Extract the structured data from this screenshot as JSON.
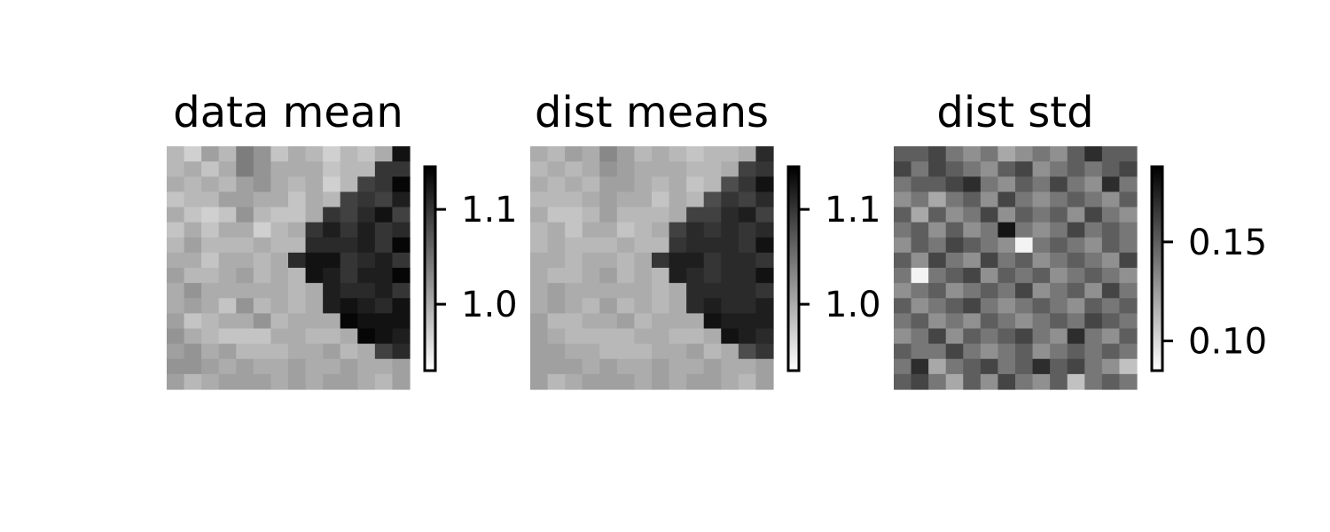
{
  "chart_data": [
    {
      "type": "heatmap",
      "title": "data mean",
      "colormap": "gray_r",
      "colorbar_range": [
        0.93,
        1.145
      ],
      "colorbar_ticks": [
        1.0,
        1.1
      ],
      "colorbar_tick_labels": [
        "1.0",
        "1.1"
      ],
      "values": [
        [
          0.99,
          0.97,
          1.01,
          0.99,
          1.04,
          1.02,
          0.98,
          1.0,
          0.99,
          0.97,
          0.99,
          0.98,
          1.0,
          1.13
        ],
        [
          0.99,
          1.0,
          0.98,
          1.0,
          1.04,
          1.02,
          1.0,
          1.0,
          1.0,
          0.98,
          0.99,
          0.99,
          1.1,
          1.1
        ],
        [
          1.0,
          0.99,
          1.0,
          0.99,
          1.01,
          1.02,
          1.0,
          0.99,
          1.0,
          0.97,
          0.99,
          1.09,
          1.1,
          1.14
        ],
        [
          0.98,
          0.99,
          0.99,
          1.01,
          1.01,
          1.0,
          1.0,
          0.98,
          1.0,
          0.99,
          1.09,
          1.1,
          1.09,
          1.12
        ],
        [
          1.0,
          0.98,
          0.97,
          0.98,
          1.02,
          0.99,
          0.98,
          0.98,
          1.0,
          1.1,
          1.09,
          1.11,
          1.13,
          1.09
        ],
        [
          0.98,
          1.0,
          0.98,
          1.0,
          1.0,
          0.97,
          0.99,
          1.0,
          1.1,
          1.12,
          1.1,
          1.12,
          1.1,
          1.11
        ],
        [
          0.99,
          1.01,
          0.99,
          0.99,
          0.99,
          1.0,
          0.99,
          0.99,
          1.11,
          1.11,
          1.11,
          1.12,
          1.1,
          1.14
        ],
        [
          1.0,
          1.0,
          0.98,
          1.0,
          1.0,
          0.99,
          1.0,
          1.11,
          1.13,
          1.13,
          1.1,
          1.11,
          1.12,
          1.1
        ],
        [
          1.01,
          0.99,
          0.99,
          1.0,
          1.01,
          0.99,
          1.0,
          0.99,
          1.13,
          1.12,
          1.1,
          1.12,
          1.12,
          1.14
        ],
        [
          1.0,
          1.02,
          1.0,
          1.0,
          1.0,
          1.0,
          1.0,
          0.99,
          1.0,
          1.12,
          1.11,
          1.11,
          1.12,
          1.1
        ],
        [
          1.0,
          1.01,
          1.0,
          0.98,
          1.02,
          0.99,
          1.0,
          0.99,
          1.0,
          1.12,
          1.13,
          1.12,
          1.11,
          1.13
        ],
        [
          1.01,
          0.98,
          0.99,
          1.0,
          1.0,
          1.02,
          0.99,
          1.0,
          1.0,
          1.0,
          1.14,
          1.13,
          1.13,
          1.13
        ],
        [
          1.02,
          1.0,
          0.99,
          0.98,
          0.98,
          0.98,
          1.0,
          1.0,
          0.99,
          0.99,
          1.0,
          1.14,
          1.13,
          1.12
        ],
        [
          1.01,
          1.02,
          1.0,
          1.01,
          0.99,
          0.99,
          0.99,
          1.0,
          1.0,
          1.01,
          0.99,
          1.0,
          1.09,
          1.11
        ],
        [
          1.02,
          1.02,
          1.01,
          1.0,
          1.01,
          1.0,
          1.0,
          1.01,
          1.0,
          1.0,
          1.01,
          1.0,
          1.0,
          1.01
        ],
        [
          1.01,
          0.99,
          1.0,
          1.01,
          1.01,
          1.01,
          1.0,
          1.01,
          1.0,
          1.01,
          1.01,
          1.0,
          0.99,
          1.01
        ]
      ]
    },
    {
      "type": "heatmap",
      "title": "dist means",
      "colormap": "gray_r",
      "colorbar_range": [
        0.93,
        1.145
      ],
      "colorbar_ticks": [
        1.0,
        1.1
      ],
      "colorbar_tick_labels": [
        "1.0",
        "1.1"
      ],
      "values": [
        [
          1.0,
          0.99,
          1.01,
          1.0,
          1.03,
          1.01,
          0.99,
          1.0,
          0.99,
          0.98,
          0.99,
          0.99,
          1.0,
          1.11
        ],
        [
          0.99,
          1.0,
          0.99,
          1.0,
          1.02,
          1.01,
          1.0,
          1.0,
          1.0,
          0.99,
          0.99,
          1.0,
          1.09,
          1.1
        ],
        [
          1.0,
          0.99,
          1.0,
          0.99,
          1.01,
          1.01,
          1.0,
          0.99,
          1.0,
          0.98,
          0.99,
          1.08,
          1.1,
          1.13
        ],
        [
          0.99,
          0.99,
          0.99,
          1.0,
          1.01,
          1.0,
          1.0,
          0.98,
          1.0,
          0.99,
          1.08,
          1.1,
          1.09,
          1.11
        ],
        [
          1.0,
          0.98,
          0.98,
          0.99,
          1.01,
          0.99,
          0.99,
          0.99,
          1.0,
          1.09,
          1.09,
          1.11,
          1.12,
          1.09
        ],
        [
          0.99,
          1.0,
          0.98,
          1.0,
          1.0,
          0.98,
          0.99,
          1.0,
          1.09,
          1.11,
          1.1,
          1.11,
          1.1,
          1.11
        ],
        [
          0.99,
          1.0,
          0.99,
          0.99,
          0.99,
          1.0,
          0.99,
          0.99,
          1.1,
          1.11,
          1.11,
          1.11,
          1.1,
          1.13
        ],
        [
          1.0,
          1.0,
          0.99,
          1.0,
          1.0,
          0.99,
          1.0,
          1.1,
          1.12,
          1.12,
          1.1,
          1.11,
          1.11,
          1.1
        ],
        [
          1.0,
          0.99,
          0.99,
          1.0,
          1.01,
          0.99,
          1.0,
          0.99,
          1.12,
          1.11,
          1.1,
          1.11,
          1.11,
          1.13
        ],
        [
          1.0,
          1.01,
          1.0,
          1.0,
          1.0,
          1.0,
          1.0,
          0.99,
          1.0,
          1.11,
          1.11,
          1.11,
          1.11,
          1.1
        ],
        [
          1.0,
          1.01,
          1.0,
          0.99,
          1.01,
          0.99,
          1.0,
          0.99,
          1.0,
          1.11,
          1.12,
          1.11,
          1.11,
          1.12
        ],
        [
          1.01,
          0.99,
          0.99,
          1.0,
          1.0,
          1.01,
          0.99,
          1.0,
          1.0,
          1.0,
          1.13,
          1.12,
          1.12,
          1.12
        ],
        [
          1.01,
          1.0,
          0.99,
          0.99,
          0.99,
          0.99,
          1.0,
          1.0,
          0.99,
          0.99,
          1.0,
          1.13,
          1.12,
          1.11
        ],
        [
          1.01,
          1.01,
          1.0,
          1.0,
          0.99,
          0.99,
          0.99,
          1.0,
          1.0,
          1.01,
          0.99,
          1.0,
          1.08,
          1.1
        ],
        [
          1.01,
          1.01,
          1.01,
          1.0,
          1.01,
          1.0,
          1.0,
          1.01,
          1.0,
          1.0,
          1.01,
          1.0,
          1.0,
          1.01
        ],
        [
          1.01,
          0.99,
          1.0,
          1.01,
          1.01,
          1.01,
          1.0,
          1.01,
          1.0,
          1.01,
          1.01,
          1.0,
          0.99,
          1.01
        ]
      ]
    },
    {
      "type": "heatmap",
      "title": "dist std",
      "colormap": "gray_r",
      "colorbar_range": [
        0.085,
        0.188
      ],
      "colorbar_ticks": [
        0.1,
        0.15
      ],
      "colorbar_tick_labels": [
        "0.10",
        "0.15"
      ],
      "values": [
        [
          0.15,
          0.15,
          0.16,
          0.14,
          0.13,
          0.14,
          0.12,
          0.13,
          0.14,
          0.13,
          0.15,
          0.17,
          0.15,
          0.15
        ],
        [
          0.16,
          0.14,
          0.16,
          0.15,
          0.14,
          0.13,
          0.15,
          0.16,
          0.13,
          0.14,
          0.15,
          0.14,
          0.15,
          0.16
        ],
        [
          0.14,
          0.15,
          0.15,
          0.16,
          0.17,
          0.14,
          0.13,
          0.15,
          0.14,
          0.16,
          0.14,
          0.13,
          0.17,
          0.14
        ],
        [
          0.13,
          0.14,
          0.12,
          0.14,
          0.15,
          0.13,
          0.16,
          0.14,
          0.13,
          0.14,
          0.15,
          0.14,
          0.13,
          0.15
        ],
        [
          0.15,
          0.12,
          0.15,
          0.13,
          0.14,
          0.16,
          0.13,
          0.15,
          0.14,
          0.15,
          0.13,
          0.16,
          0.14,
          0.13
        ],
        [
          0.14,
          0.15,
          0.13,
          0.15,
          0.13,
          0.14,
          0.18,
          0.14,
          0.13,
          0.14,
          0.16,
          0.14,
          0.15,
          0.14
        ],
        [
          0.13,
          0.15,
          0.14,
          0.16,
          0.15,
          0.14,
          0.13,
          0.09,
          0.14,
          0.15,
          0.14,
          0.13,
          0.15,
          0.14
        ],
        [
          0.15,
          0.13,
          0.16,
          0.14,
          0.13,
          0.16,
          0.14,
          0.15,
          0.13,
          0.14,
          0.15,
          0.14,
          0.13,
          0.16
        ],
        [
          0.14,
          0.09,
          0.14,
          0.15,
          0.16,
          0.13,
          0.15,
          0.14,
          0.15,
          0.13,
          0.14,
          0.15,
          0.14,
          0.13
        ],
        [
          0.13,
          0.14,
          0.15,
          0.13,
          0.14,
          0.15,
          0.14,
          0.16,
          0.13,
          0.14,
          0.15,
          0.13,
          0.16,
          0.14
        ],
        [
          0.15,
          0.13,
          0.14,
          0.15,
          0.16,
          0.14,
          0.13,
          0.14,
          0.15,
          0.14,
          0.13,
          0.15,
          0.14,
          0.15
        ],
        [
          0.14,
          0.15,
          0.13,
          0.14,
          0.13,
          0.15,
          0.14,
          0.13,
          0.14,
          0.15,
          0.14,
          0.16,
          0.15,
          0.14
        ],
        [
          0.13,
          0.14,
          0.16,
          0.13,
          0.15,
          0.14,
          0.15,
          0.16,
          0.14,
          0.13,
          0.17,
          0.14,
          0.13,
          0.15
        ],
        [
          0.15,
          0.14,
          0.14,
          0.16,
          0.14,
          0.13,
          0.14,
          0.15,
          0.13,
          0.14,
          0.15,
          0.14,
          0.15,
          0.14
        ],
        [
          0.14,
          0.17,
          0.12,
          0.14,
          0.15,
          0.16,
          0.14,
          0.15,
          0.17,
          0.15,
          0.16,
          0.14,
          0.13,
          0.11
        ],
        [
          0.15,
          0.16,
          0.14,
          0.12,
          0.15,
          0.13,
          0.16,
          0.14,
          0.13,
          0.15,
          0.11,
          0.14,
          0.15,
          0.14
        ]
      ]
    }
  ]
}
